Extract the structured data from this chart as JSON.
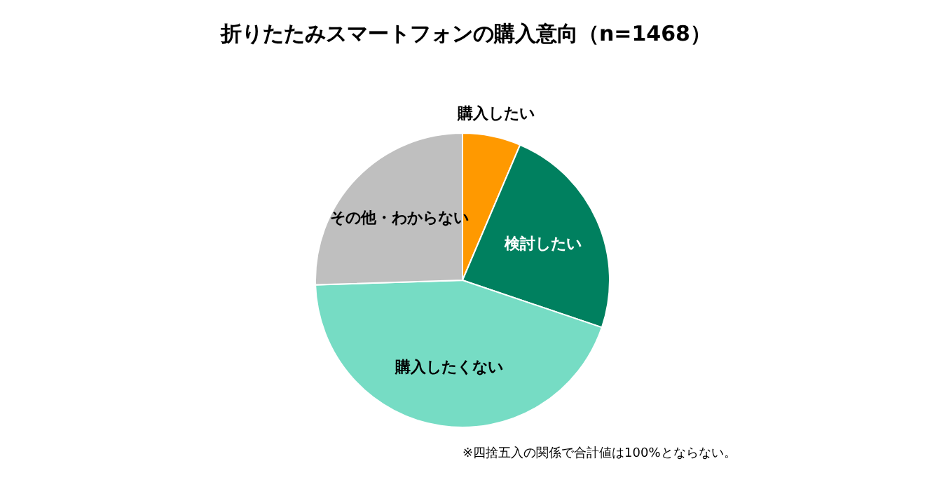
{
  "chart_data": {
    "type": "pie",
    "title": "折りたたみスマートフォンの購入意向（n=1468）",
    "categories": [
      "購入したい",
      "検討したい",
      "購入したくない",
      "その他・わからない"
    ],
    "values": [
      6.4,
      23.8,
      44.3,
      25.5
    ],
    "colors": [
      "#ff9900",
      "#00805f",
      "#76dcc4",
      "#bfbfbf"
    ],
    "annotations": [
      "※四捨五入の関係で合計値は100%とならない。"
    ]
  }
}
